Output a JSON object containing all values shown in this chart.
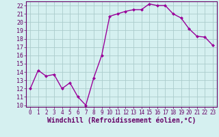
{
  "x": [
    0,
    1,
    2,
    3,
    4,
    5,
    6,
    7,
    8,
    9,
    10,
    11,
    12,
    13,
    14,
    15,
    16,
    17,
    18,
    19,
    20,
    21,
    22,
    23
  ],
  "y": [
    12.0,
    14.2,
    13.5,
    13.7,
    12.0,
    12.7,
    11.0,
    10.0,
    13.3,
    16.0,
    20.7,
    21.0,
    21.3,
    21.5,
    21.5,
    22.2,
    22.0,
    22.0,
    21.0,
    20.5,
    19.2,
    18.3,
    18.2,
    17.2
  ],
  "line_color": "#990099",
  "marker": "D",
  "marker_size": 2.0,
  "line_width": 1.0,
  "bg_color": "#d5f0f0",
  "grid_color": "#aacccc",
  "xlabel": "Windchill (Refroidissement éolien,°C)",
  "xlabel_color": "#660066",
  "xlabel_fontsize": 7,
  "tick_color": "#660066",
  "ytick_fontsize": 6,
  "xtick_fontsize": 5.5,
  "ylim": [
    9.8,
    22.5
  ],
  "yticks": [
    10,
    11,
    12,
    13,
    14,
    15,
    16,
    17,
    18,
    19,
    20,
    21,
    22
  ],
  "xlim": [
    -0.5,
    23.5
  ],
  "xticks": [
    0,
    1,
    2,
    3,
    4,
    5,
    6,
    7,
    8,
    9,
    10,
    11,
    12,
    13,
    14,
    15,
    16,
    17,
    18,
    19,
    20,
    21,
    22,
    23
  ]
}
